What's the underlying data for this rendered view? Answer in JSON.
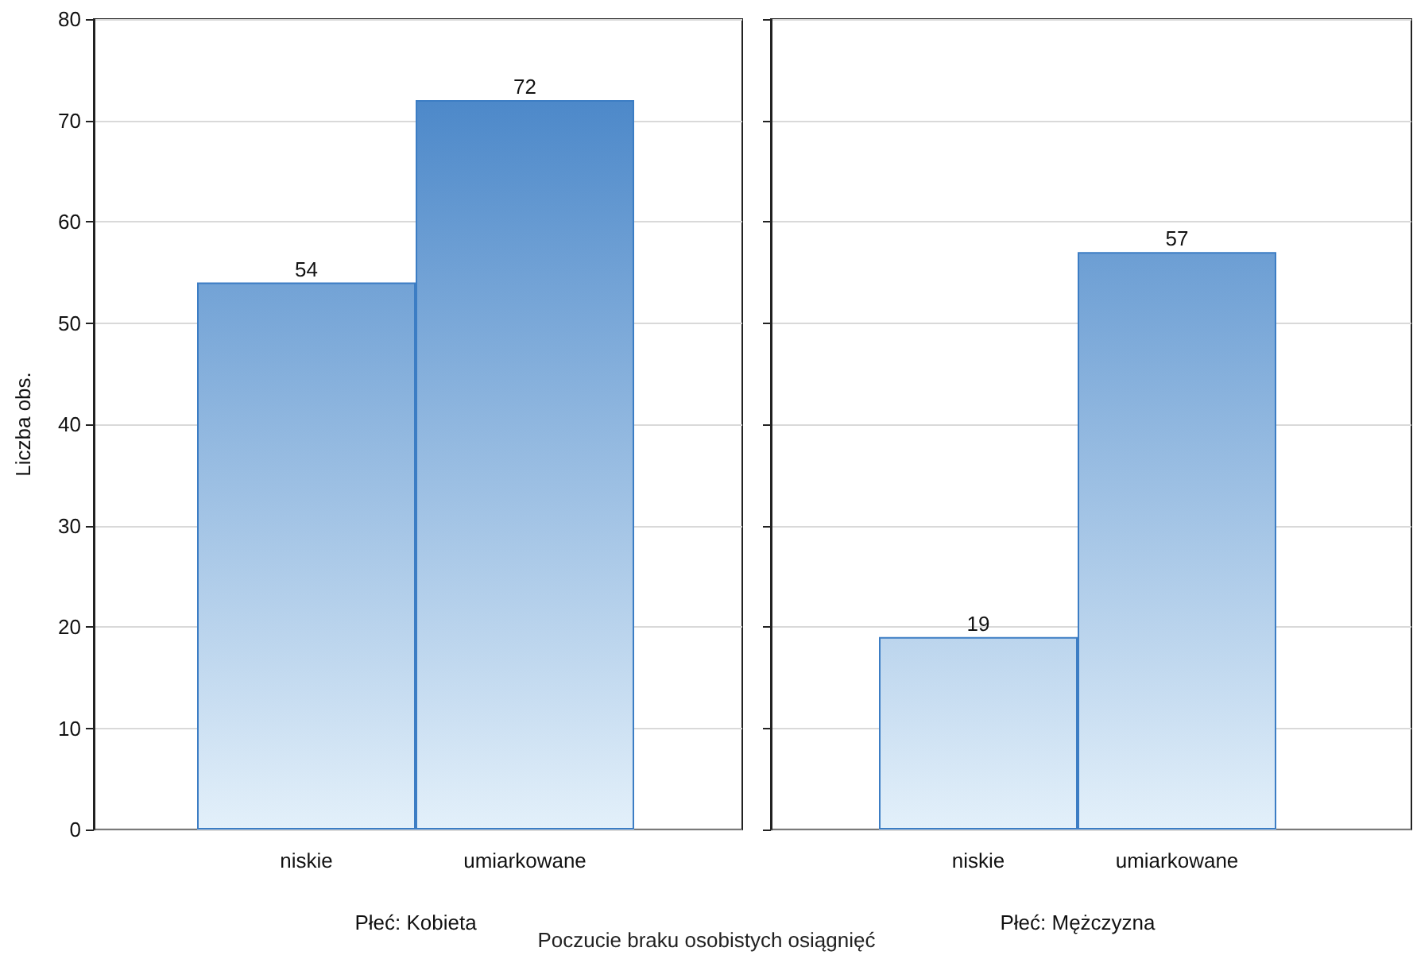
{
  "chart_data": [
    {
      "type": "bar",
      "ylabel": "Liczba obs.",
      "xlabel": "Płeć: Kobieta",
      "categories": [
        "niskie",
        "umiarkowane"
      ],
      "values": [
        54,
        72
      ],
      "color": "#3c7dc4",
      "ylim": [
        0,
        80
      ],
      "yticks": [
        0,
        10,
        20,
        30,
        40,
        50,
        60,
        70,
        80
      ],
      "grid": "y",
      "data_labels": true,
      "annotations": [
        "Poczucie braku osobistych osiągnięć"
      ]
    },
    {
      "type": "bar",
      "xlabel": "Płeć: Mężczyzna",
      "categories": [
        "niskie",
        "umiarkowane"
      ],
      "values": [
        19,
        57
      ],
      "color": "#3c7dc4",
      "ylim": [
        0,
        80
      ],
      "yticks": [
        0,
        10,
        20,
        30,
        40,
        50,
        60,
        70,
        80
      ],
      "grid": "y",
      "data_labels": true,
      "tick_labels": "x"
    }
  ]
}
